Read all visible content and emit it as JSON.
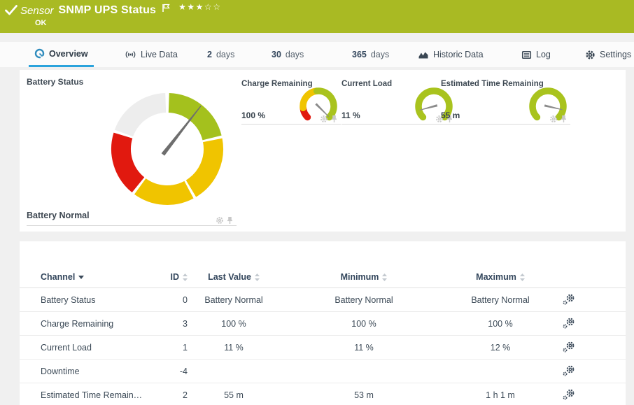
{
  "colors": {
    "status_ok_green": "#a9ba23",
    "accent_blue": "#2ba3dc",
    "gauge_green_big": "#a4c11d",
    "gauge_green_mini": "#a9c31e",
    "gauge_yellow": "#f0c400",
    "gauge_red": "#e1190f",
    "gauge_gray": "#ededed",
    "needle_gray": "#6e6e6e",
    "header_navy": "#33465c"
  },
  "header": {
    "sensor_kind": "Sensor",
    "title": "SNMP UPS Status",
    "status": "OK",
    "rating": {
      "filled": 3,
      "total": 5
    },
    "icons": [
      "check-icon",
      "flag-icon",
      "star-rating"
    ]
  },
  "tabs": {
    "overview": {
      "label": "Overview",
      "icon": "gauge-icon",
      "active": true
    },
    "live_data": {
      "label": "Live Data",
      "icon": "live-signal-icon"
    },
    "days2": {
      "num": "2",
      "unit": "days"
    },
    "days30": {
      "num": "30",
      "unit": "days"
    },
    "days365": {
      "num": "365",
      "unit": "days"
    },
    "historic": {
      "label": "Historic Data",
      "icon": "area-chart-icon"
    },
    "log": {
      "label": "Log",
      "icon": "log-list-icon"
    },
    "settings": {
      "label": "Settings",
      "icon": "gear-icon"
    }
  },
  "overview": {
    "battery_gauge": {
      "title": "Battery Status",
      "status_label": "Battery Normal",
      "needle_angle": 38,
      "segments": [
        {
          "from": 2,
          "to": 76,
          "color": "#a4c11d"
        },
        {
          "from": 79,
          "to": 149,
          "color": "#f0c400"
        },
        {
          "from": 152,
          "to": 216,
          "color": "#f0c400"
        },
        {
          "from": 219,
          "to": 287,
          "color": "#e1190f"
        },
        {
          "from": 290,
          "to": 358,
          "color": "#ededed"
        }
      ],
      "icons": [
        "gear-icon",
        "pin-icon"
      ]
    },
    "mini_gauges": [
      {
        "title": "Charge Remaining",
        "value": "100 %",
        "needle_angle": 135,
        "segments": [
          {
            "from": -135,
            "to": -96,
            "color": "#e1190f"
          },
          {
            "from": -96,
            "to": -6,
            "color": "#f0c400"
          },
          {
            "from": -6,
            "to": 135,
            "color": "#a9c31e"
          }
        ],
        "icons": [
          "gear-icon",
          "pin-icon"
        ]
      },
      {
        "title": "Current Load",
        "value": "11 %",
        "needle_angle": -105,
        "segments": [
          {
            "from": -135,
            "to": 135,
            "color": "#a9c31e"
          }
        ],
        "icons": [
          "gear-icon",
          "pin-icon"
        ]
      },
      {
        "title": "Estimated Time Remaining",
        "value": "55 m",
        "needle_angle": 103,
        "segments": [
          {
            "from": -135,
            "to": 135,
            "color": "#a9c31e"
          }
        ],
        "icons": [
          "gear-icon",
          "pin-icon"
        ]
      }
    ]
  },
  "table": {
    "columns": [
      {
        "label": "Channel",
        "sort": "sorted-desc"
      },
      {
        "label": "ID",
        "sort": "sortable"
      },
      {
        "label": "Last Value",
        "sort": "sortable"
      },
      {
        "label": "Minimum",
        "sort": "sortable"
      },
      {
        "label": "Maximum",
        "sort": "sortable"
      }
    ],
    "rows": [
      {
        "channel": "Battery Status",
        "id": "0",
        "last": "Battery Normal",
        "min": "Battery Normal",
        "max": "Battery Normal"
      },
      {
        "channel": "Charge Remaining",
        "id": "3",
        "last": "100 %",
        "min": "100 %",
        "max": "100 %"
      },
      {
        "channel": "Current Load",
        "id": "1",
        "last": "11 %",
        "min": "11 %",
        "max": "12 %"
      },
      {
        "channel": "Downtime",
        "id": "-4",
        "last": "",
        "min": "",
        "max": ""
      },
      {
        "channel": "Estimated Time Remain…",
        "id": "2",
        "last": "55 m",
        "min": "53 m",
        "max": "1 h 1 m"
      }
    ],
    "row_action_icon": "edit-channel-gears-icon"
  }
}
